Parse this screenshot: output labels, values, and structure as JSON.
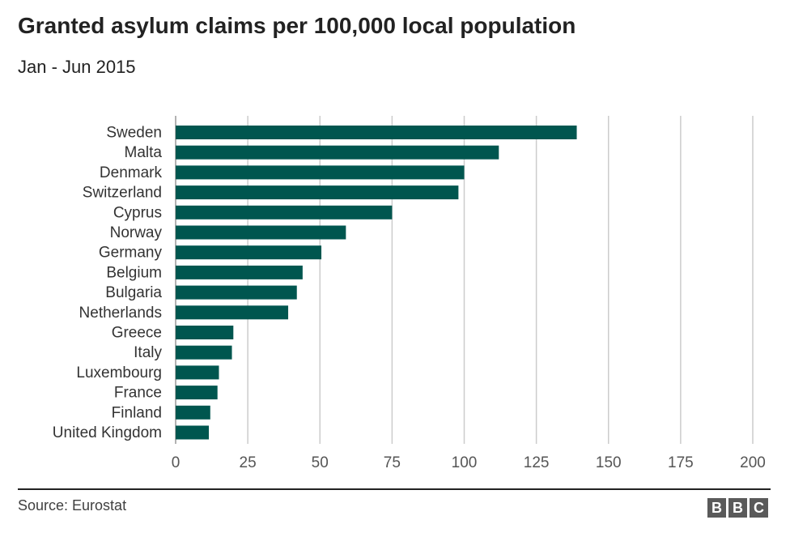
{
  "header": {
    "title": "Granted asylum claims per 100,000 local population",
    "subtitle": "Jan - Jun 2015"
  },
  "footer": {
    "source": "Source: Eurostat",
    "logo": [
      "B",
      "B",
      "C"
    ]
  },
  "colors": {
    "bar": "#00564f",
    "grid": "#cccccc",
    "text": "#222222",
    "axis_text": "#555555"
  },
  "chart_data": {
    "type": "bar",
    "orientation": "horizontal",
    "categories": [
      "Sweden",
      "Malta",
      "Denmark",
      "Switzerland",
      "Cyprus",
      "Norway",
      "Germany",
      "Belgium",
      "Bulgaria",
      "Netherlands",
      "Greece",
      "Italy",
      "Luxembourg",
      "France",
      "Finland",
      "United Kingdom"
    ],
    "values": [
      139,
      112,
      100,
      98,
      75,
      59,
      50.5,
      44,
      42,
      39,
      20,
      19.5,
      15,
      14.5,
      12,
      11.5
    ],
    "title": "Granted asylum claims per 100,000 local population",
    "subtitle": "Jan - Jun 2015",
    "xlabel": "",
    "ylabel": "",
    "xlim": [
      0,
      200
    ],
    "xticks": [
      "0",
      "25",
      "50",
      "75",
      "100",
      "125",
      "150",
      "175",
      "200"
    ],
    "grid": true
  }
}
